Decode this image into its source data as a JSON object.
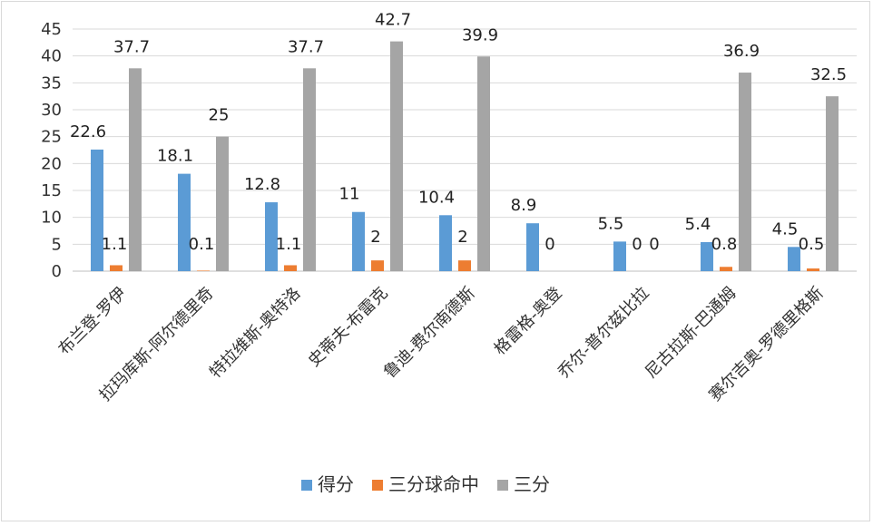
{
  "chart_data": {
    "type": "bar",
    "title": "",
    "xlabel": "",
    "ylabel": "",
    "ylim": [
      0,
      45
    ],
    "yticks": [
      0,
      5,
      10,
      15,
      20,
      25,
      30,
      35,
      40,
      45
    ],
    "grid": true,
    "legend_position": "bottom",
    "categories": [
      "布兰登-罗伊",
      "拉玛库斯-阿尔德里奇",
      "特拉维斯-奥特洛",
      "史蒂夫-布雷克",
      "鲁迪-费尔南德斯",
      "格雷格-奥登",
      "乔尔-普尔兹比拉",
      "尼古拉斯-巴通姆",
      "赛尔吉奥-罗德里格斯"
    ],
    "series": [
      {
        "name": "得分",
        "color": "#5b9bd5",
        "values": [
          22.6,
          18.1,
          12.8,
          11,
          10.4,
          8.9,
          5.5,
          5.4,
          4.5
        ],
        "labels": [
          "22.6",
          "18.1",
          "12.8",
          "11",
          "10.4",
          "8.9",
          "5.5",
          "5.4",
          "4.5"
        ]
      },
      {
        "name": "三分球命中",
        "color": "#ed7d31",
        "values": [
          1.1,
          0.1,
          1.1,
          2,
          2,
          0,
          0,
          0.8,
          0.5
        ],
        "labels": [
          "1.1",
          "0.1",
          "1.1",
          "2",
          "2",
          "0",
          "0",
          "0.8",
          "0.5"
        ]
      },
      {
        "name": "三分",
        "color": "#a5a5a5",
        "values": [
          37.7,
          25,
          37.7,
          42.7,
          39.9,
          0,
          0,
          36.9,
          32.5
        ],
        "labels": [
          "37.7",
          "25",
          "37.7",
          "42.7",
          "39.9",
          "",
          "0",
          "36.9",
          "32.5"
        ]
      }
    ]
  }
}
